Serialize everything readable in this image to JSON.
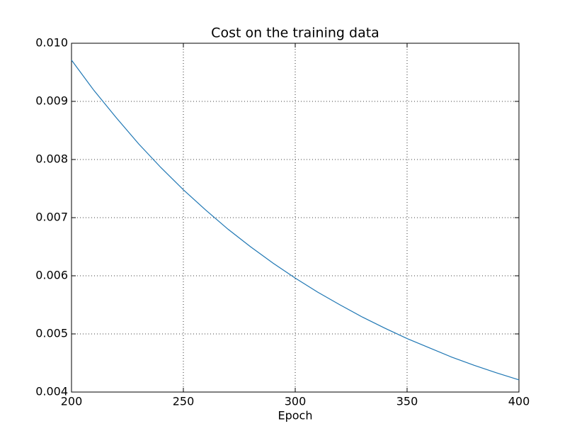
{
  "chart_data": {
    "type": "line",
    "title": "Cost on the training data",
    "x_label": "Epoch",
    "x": [
      200,
      210,
      220,
      230,
      240,
      250,
      260,
      270,
      280,
      290,
      300,
      310,
      320,
      330,
      340,
      350,
      360,
      370,
      380,
      390,
      400
    ],
    "series": [
      {
        "color": "#1f77b4",
        "values": [
          0.00971,
          0.00919,
          0.00872,
          0.00827,
          0.00786,
          0.00748,
          0.00713,
          0.0068,
          0.0065,
          0.00622,
          0.00596,
          0.00572,
          0.0055,
          0.00529,
          0.0051,
          0.00492,
          0.00476,
          0.0046,
          0.00446,
          0.00433,
          0.00421
        ]
      }
    ],
    "xlim": [
      200,
      400
    ],
    "xticks": [
      200,
      250,
      300,
      350,
      400
    ],
    "ylim": [
      0.004,
      0.01
    ],
    "yticks": [
      0.004,
      0.005,
      0.006,
      0.007,
      0.008,
      0.009,
      {
        "value": 0.01,
        "label": "0.010"
      }
    ],
    "grid": true
  }
}
